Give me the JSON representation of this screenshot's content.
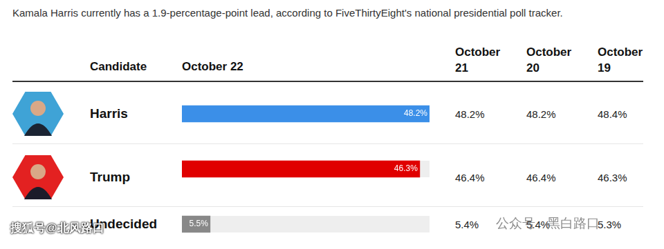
{
  "title": "Kamala Harris currently has a 1.9-percentage-point lead, according to FiveThirtyEight's national presidential poll tracker.",
  "table": {
    "candidate_header": "Candidate",
    "dates": [
      "October 21",
      "October 20",
      "October 19"
    ],
    "rows": [
      [
        "48.2%",
        "48.2%",
        "48.4%"
      ],
      [
        "46.4%",
        "46.4%",
        "46.3%"
      ],
      [
        "5.4%",
        "5.4%",
        "5.3%"
      ]
    ]
  },
  "chart_data": {
    "type": "bar",
    "orientation": "horizontal",
    "title": "October 22",
    "categories": [
      "Harris",
      "Trump",
      "Undecided"
    ],
    "values": [
      48.2,
      46.3,
      5.5
    ],
    "value_labels": [
      "48.2%",
      "46.3%",
      "5.5%"
    ],
    "colors": [
      "#3b8fe8",
      "#e00000",
      "#888888"
    ],
    "xlim": [
      0,
      48.2
    ],
    "tick_labels": false,
    "data_labels": true,
    "grid": false
  },
  "watermarks": [
    "公众号 · 黑白路口",
    "搜狐号@北风路口"
  ]
}
